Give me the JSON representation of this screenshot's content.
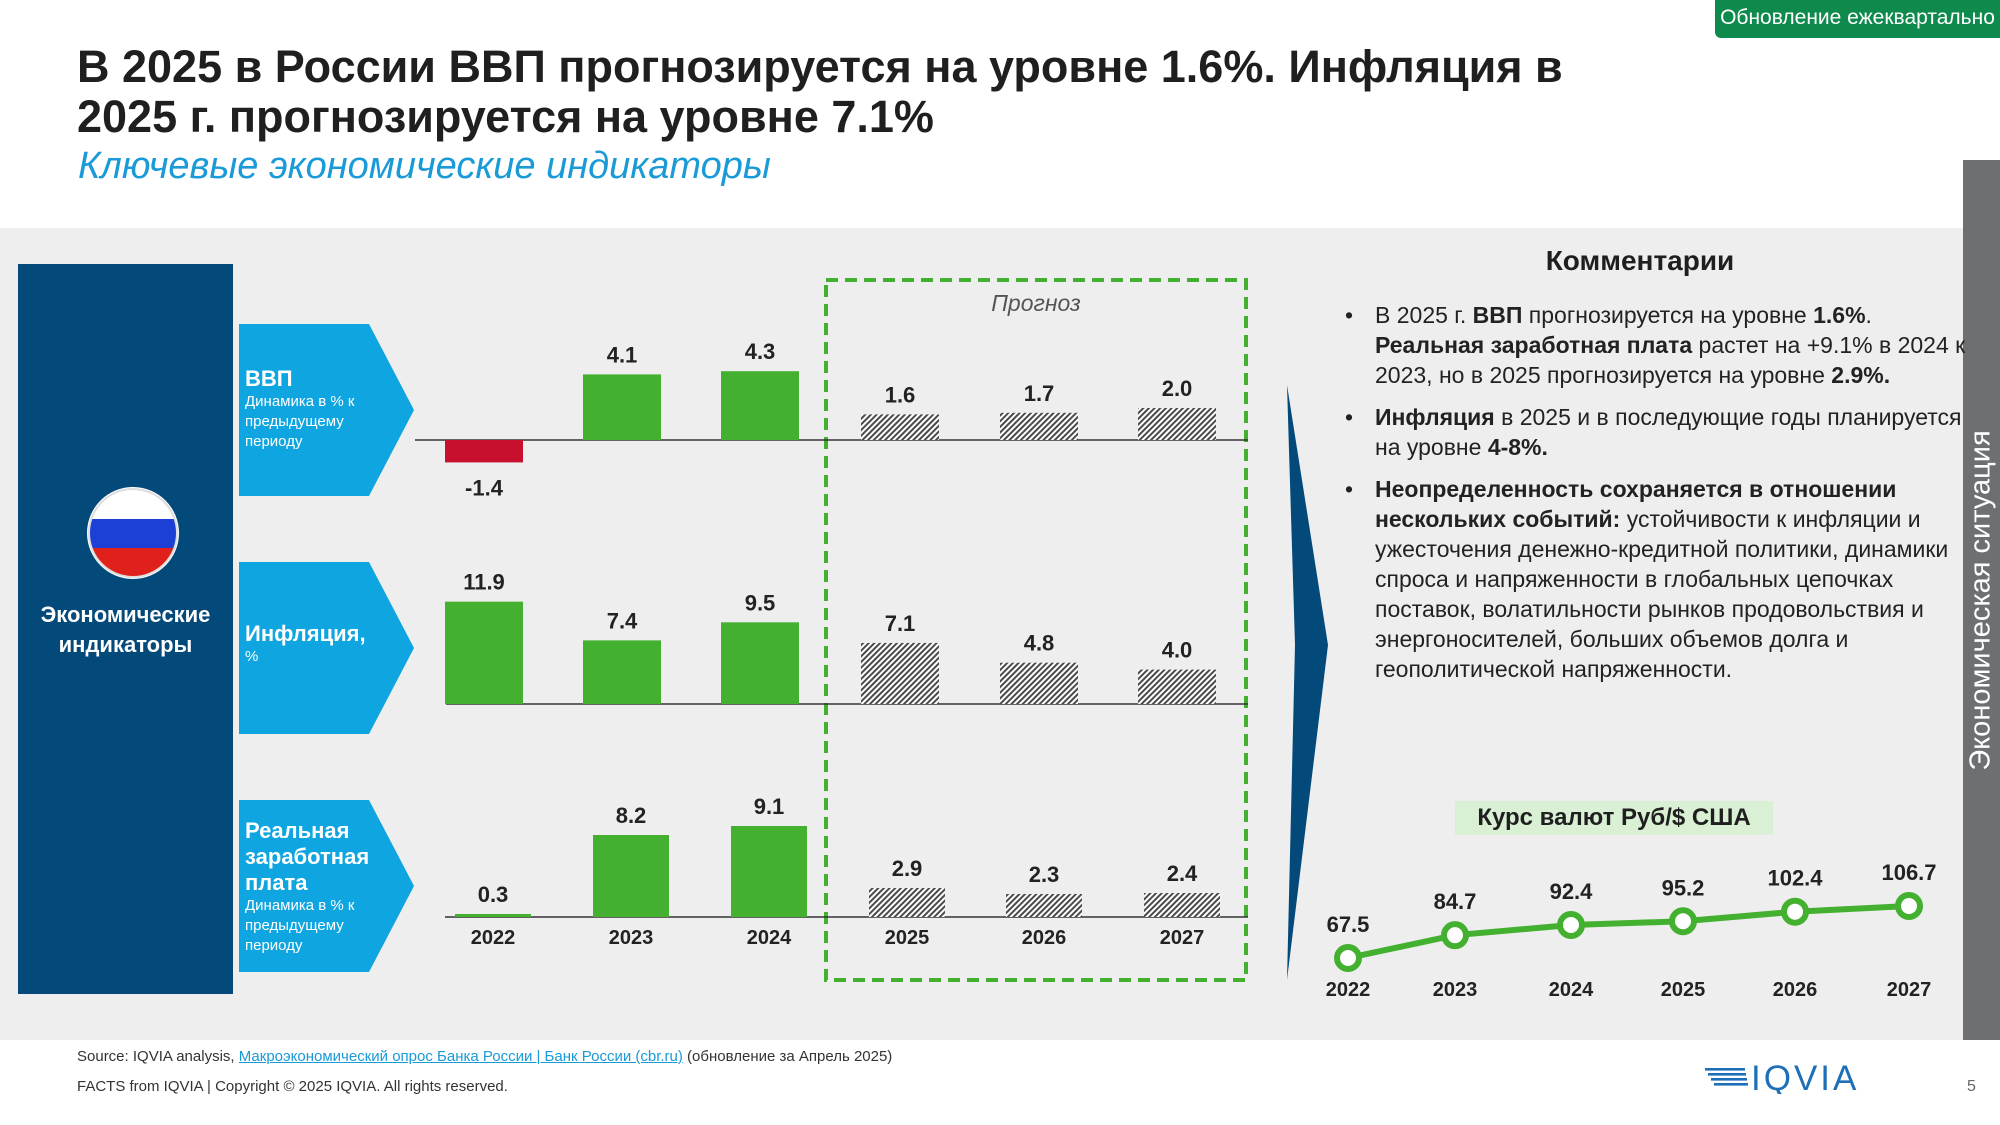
{
  "badge": "Обновление ежеквартально",
  "title": "В 2025 в России ВВП прогнозируется на уровне 1.6%. Инфляция в 2025 г. прогнозируется на уровне 7.1%",
  "subtitle": "Ключевые экономические индикаторы",
  "side_tab": "Экономическая ситуация",
  "left_panel": {
    "label": "Экономические индикаторы"
  },
  "colors": {
    "positive": "#44b02f",
    "negative": "#c8102e",
    "forecast": "#4a4a4a",
    "dark_blue": "#03497a",
    "light_blue": "#0ea5e0",
    "badge_green": "#0f8a4d",
    "forecast_border": "#44b02f"
  },
  "forecast_label": "Прогноз",
  "chart_data": [
    {
      "type": "bar",
      "id": "gdp",
      "title": "ВВП",
      "subtitle": "Динамика в % к предыдущему периоду",
      "categories": [
        "2022",
        "2023",
        "2024",
        "2025",
        "2026",
        "2027"
      ],
      "values": [
        -1.4,
        4.1,
        4.3,
        1.6,
        1.7,
        2.0
      ],
      "labels": [
        "-1.4",
        "4.1",
        "4.3",
        "1.6",
        "1.7",
        "2.0"
      ],
      "forecast_from": "2025"
    },
    {
      "type": "bar",
      "id": "inflation",
      "title": "Инфляция,",
      "subtitle": "%",
      "categories": [
        "2022",
        "2023",
        "2024",
        "2025",
        "2026",
        "2027"
      ],
      "values": [
        11.9,
        7.4,
        9.5,
        7.1,
        4.8,
        4.0
      ],
      "labels": [
        "11.9",
        "7.4",
        "9.5",
        "7.1",
        "4.8",
        "4.0"
      ],
      "forecast_from": "2025"
    },
    {
      "type": "bar",
      "id": "wages",
      "title": "Реальная заработная плата",
      "subtitle": "Динамика в % к предыдущему периоду",
      "categories": [
        "2022",
        "2023",
        "2024",
        "2025",
        "2026",
        "2027"
      ],
      "values": [
        0.3,
        8.2,
        9.1,
        2.9,
        2.3,
        2.4
      ],
      "labels": [
        "0.3",
        "8.2",
        "9.1",
        "2.9",
        "2.3",
        "2.4"
      ],
      "forecast_from": "2025"
    },
    {
      "type": "line",
      "id": "fx",
      "title": "Курс валют Руб/$ США",
      "categories": [
        "2022",
        "2023",
        "2024",
        "2025",
        "2026",
        "2027"
      ],
      "values": [
        67.5,
        84.7,
        92.4,
        95.2,
        102.4,
        106.7
      ],
      "labels": [
        "67.5",
        "84.7",
        "92.4",
        "95.2",
        "102.4",
        "106.7"
      ]
    }
  ],
  "comments": {
    "title": "Комментарии",
    "bullets": [
      {
        "parts": [
          {
            "t": "В 2025 г. ",
            "b": false
          },
          {
            "t": "ВВП",
            "b": true
          },
          {
            "t": " прогнозируется на уровне ",
            "b": false
          },
          {
            "t": "1.6%",
            "b": true
          },
          {
            "t": ". ",
            "b": false
          },
          {
            "t": "Реальная заработная плата",
            "b": true
          },
          {
            "t": " растет на +9.1% в 2024 к 2023, но в 2025 прогнозируется на уровне ",
            "b": false
          },
          {
            "t": "2.9%.",
            "b": true
          }
        ]
      },
      {
        "parts": [
          {
            "t": "Инфляция",
            "b": true
          },
          {
            "t": " в 2025 и в последующие годы планируется на уровне ",
            "b": false
          },
          {
            "t": "4-8%.",
            "b": true
          }
        ]
      },
      {
        "parts": [
          {
            "t": "Неопределенность сохраняется в отношении нескольких событий:",
            "b": true
          },
          {
            "t": " устойчивости к инфляции и ужесточения денежно-кредитной политики, динамики спроса и напряженности в глобальных цепочках поставок, волатильности рынков продовольствия и энергоносителей, больших объемов долга и геополитической напряженности.",
            "b": false
          }
        ]
      }
    ]
  },
  "footer": {
    "source_prefix": "Source: IQVIA analysis, ",
    "source_link": "Макроэкономический опрос Банка России | Банк России (cbr.ru)",
    "source_suffix": " (обновление за Апрель 2025)",
    "copyright": "FACTS from IQVIA | Copyright © 2025 IQVIA. All rights reserved.",
    "logo_text": "IQVIA",
    "page_number": "5"
  }
}
